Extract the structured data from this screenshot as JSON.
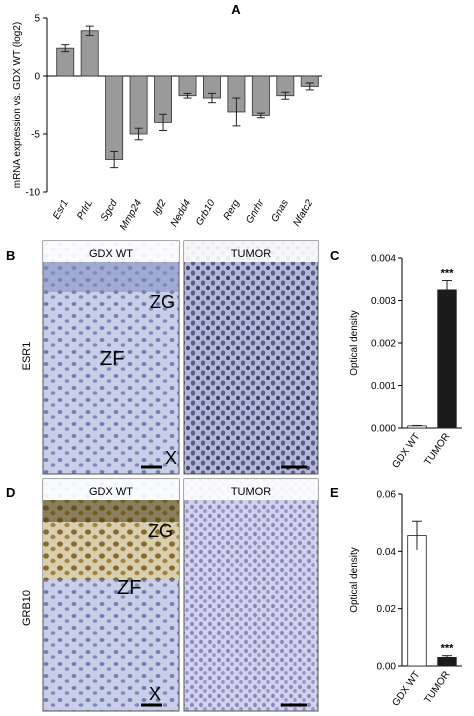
{
  "figure": {
    "panels": {
      "a": "A",
      "b": "B",
      "c": "C",
      "d": "D",
      "e": "E"
    },
    "micrographs": {
      "esr1_row_label": "ESR1",
      "grb10_row_label": "GRB10",
      "col_wt": "GDX WT",
      "col_tumor": "TUMOR",
      "zone_zg": "ZG",
      "zone_zf": "ZF",
      "zone_x": "X"
    }
  },
  "chart_data": [
    {
      "type": "bar",
      "panel": "A",
      "ylabel": "mRNA expression vs. GDX WT (log2)",
      "ylim": [
        -10,
        5
      ],
      "yticks": [
        5,
        0,
        -5,
        -10
      ],
      "categories": [
        "Esr1",
        "PrlrL",
        "Sgcd",
        "Mmp24",
        "Igf2",
        "Nedd4",
        "Grb10",
        "Rerg",
        "Gnrhr",
        "Gnas",
        "Nfatc2"
      ],
      "values": [
        2.4,
        3.9,
        -7.2,
        -5.0,
        -4.0,
        -1.7,
        -1.9,
        -3.1,
        -3.4,
        -1.7,
        -0.9
      ],
      "errors": [
        0.3,
        0.4,
        0.7,
        0.5,
        0.7,
        0.2,
        0.4,
        1.2,
        0.2,
        0.3,
        0.3
      ],
      "colors": {
        "bar": "#9a9a9a",
        "stroke": "#333333"
      }
    },
    {
      "type": "bar",
      "panel": "C",
      "ylabel": "Optical density",
      "ylim": [
        0,
        0.004
      ],
      "yticks": [
        "0.000",
        "0.001",
        "0.002",
        "0.003",
        "0.004"
      ],
      "categories": [
        "GDX WT",
        "TUMOR"
      ],
      "values": [
        5e-05,
        0.00325
      ],
      "errors": [
        1e-05,
        0.00022
      ],
      "significance": [
        "",
        "***"
      ],
      "colors": [
        "#ffffff",
        "#1a1a1a"
      ]
    },
    {
      "type": "bar",
      "panel": "E",
      "ylabel": "Optical density",
      "ylim": [
        0,
        0.06
      ],
      "yticks": [
        "0.00",
        "0.02",
        "0.04",
        "0.06"
      ],
      "categories": [
        "GDX WT",
        "TUMOR"
      ],
      "values": [
        0.0455,
        0.003
      ],
      "errors": [
        0.005,
        0.0006
      ],
      "significance": [
        "",
        "***"
      ],
      "colors": [
        "#ffffff",
        "#1a1a1a"
      ]
    }
  ]
}
